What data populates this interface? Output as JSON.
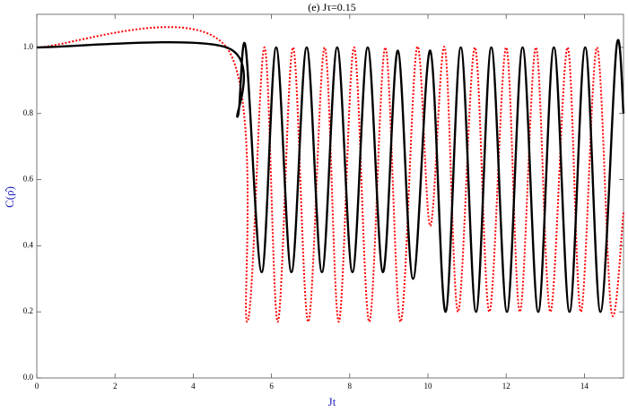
{
  "chart_data": {
    "type": "line",
    "title": "(e) Jτ=0.15",
    "xlabel": "Jt",
    "ylabel": "C(ρ̂)",
    "xlim": [
      0,
      15
    ],
    "ylim": [
      0,
      1.1
    ],
    "xticks": [
      0,
      2,
      4,
      6,
      8,
      10,
      12,
      14
    ],
    "yticks": [
      {
        "value": 0,
        "label": "0.0"
      },
      {
        "value": 0.2,
        "label": "0.2"
      },
      {
        "value": 0.4,
        "label": "0.4"
      },
      {
        "value": 0.6,
        "label": "0.6"
      },
      {
        "value": 0.8,
        "label": "0.8"
      },
      {
        "value": 1,
        "label": "1.0"
      }
    ],
    "series": [
      {
        "color": "#000000",
        "dash": "solid",
        "x": [
          0,
          4.85,
          5.13,
          5.34,
          5.75,
          6.12,
          6.51,
          6.9,
          7.29,
          7.68,
          8.07,
          8.46,
          8.85,
          9.23,
          9.62,
          10.06,
          10.45,
          10.84,
          11.23,
          11.62,
          12.02,
          12.42,
          12.82,
          13.22,
          13.62,
          14.02,
          14.41,
          14.82,
          15
        ],
        "values": [
          1,
          1,
          0.79,
          1,
          0.32,
          1,
          0.32,
          1,
          0.32,
          1,
          0.32,
          1,
          0.32,
          0.99,
          0.3,
          0.99,
          0.2,
          1,
          0.2,
          1,
          0.2,
          1,
          0.2,
          1,
          0.2,
          1,
          0.2,
          1,
          0.8
        ]
      },
      {
        "color": "#ff0000",
        "dash": "dotted",
        "x": [
          0,
          4.85,
          5.38,
          5.82,
          6.16,
          6.55,
          6.94,
          7.36,
          7.72,
          8.11,
          8.5,
          8.91,
          9.3,
          9.72,
          10.06,
          10.43,
          10.77,
          11.2,
          11.57,
          12.0,
          12.35,
          12.76,
          13.13,
          13.57,
          13.91,
          14.32,
          14.69,
          15
        ],
        "values": [
          1,
          1,
          0.17,
          1,
          0.17,
          1,
          0.17,
          1,
          0.17,
          1,
          0.17,
          1,
          0.17,
          1,
          0.46,
          1,
          0.2,
          1,
          0.2,
          1,
          0.2,
          1,
          0.2,
          1,
          0.2,
          1,
          0.2,
          0.5
        ]
      }
    ]
  }
}
